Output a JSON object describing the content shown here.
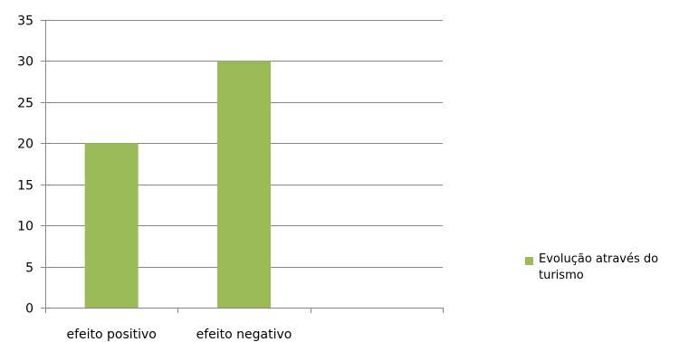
{
  "chart_data": {
    "type": "bar",
    "categories": [
      "efeito positivo",
      "efeito negativo",
      ""
    ],
    "series": [
      {
        "name": "Evolução através do turismo",
        "values": [
          20,
          30,
          null
        ],
        "color": "#9BBB59"
      }
    ],
    "title": "",
    "xlabel": "",
    "ylabel": "",
    "ylim": [
      0,
      35
    ],
    "yticks": [
      0,
      5,
      10,
      15,
      20,
      25,
      30,
      35
    ],
    "grid": true,
    "legend": "right"
  },
  "colors": {
    "bar": "#9BBB59",
    "grid": "#868686",
    "axis": "#868686"
  }
}
